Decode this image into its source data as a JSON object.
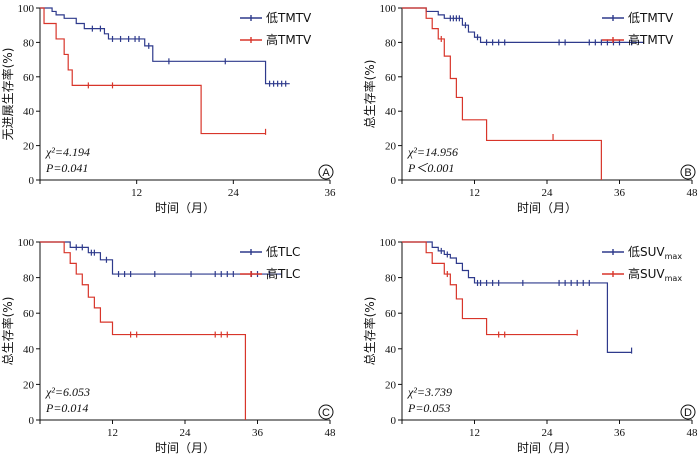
{
  "colors": {
    "low": "#2e3a8c",
    "high": "#d8352a",
    "axis": "#111111"
  },
  "chart_data": [
    {
      "type": "line",
      "panel": "A",
      "ylabel": "无进展生存率(%)",
      "xlabel": "时间（月）",
      "xlim": [
        0,
        36
      ],
      "ylim": [
        0,
        100
      ],
      "xticks": [
        0,
        12,
        24,
        36
      ],
      "xtick_labels": [
        "",
        "12",
        "24",
        "36"
      ],
      "yticks": [
        0,
        20,
        40,
        60,
        80,
        100
      ],
      "legend_position": "top-right",
      "stats": [
        "χ²=4.194",
        "P=0.041"
      ],
      "series": [
        {
          "name": "低TMTV",
          "key": "low",
          "steps": [
            [
              0,
              100
            ],
            [
              1.5,
              98
            ],
            [
              2,
              96
            ],
            [
              3,
              94
            ],
            [
              4.5,
              91
            ],
            [
              5.5,
              88
            ],
            [
              8,
              85
            ],
            [
              8.5,
              82
            ],
            [
              13,
              78
            ],
            [
              14,
              69
            ],
            [
              28,
              56
            ],
            [
              31,
              56
            ]
          ],
          "censors": [
            [
              6.5,
              88
            ],
            [
              7.5,
              88
            ],
            [
              9,
              82
            ],
            [
              10,
              82
            ],
            [
              11,
              82
            ],
            [
              11.8,
              82
            ],
            [
              12.3,
              82
            ],
            [
              13.5,
              78
            ],
            [
              16,
              69
            ],
            [
              23,
              69
            ],
            [
              28.5,
              56
            ],
            [
              29,
              56
            ],
            [
              29.5,
              56
            ],
            [
              30,
              56
            ],
            [
              30.5,
              56
            ]
          ]
        },
        {
          "name": "高TMTV",
          "key": "high",
          "steps": [
            [
              0,
              100
            ],
            [
              0.5,
              91
            ],
            [
              2,
              82
            ],
            [
              3,
              73
            ],
            [
              3.5,
              64
            ],
            [
              4,
              55
            ],
            [
              20,
              27
            ],
            [
              28,
              27
            ]
          ],
          "censors": [
            [
              6,
              55
            ],
            [
              9,
              55
            ],
            [
              28,
              28
            ]
          ]
        }
      ]
    },
    {
      "type": "line",
      "panel": "B",
      "ylabel": "总生存率(%)",
      "xlabel": "时间（月）",
      "xlim": [
        0,
        48
      ],
      "ylim": [
        0,
        100
      ],
      "xticks": [
        0,
        12,
        24,
        36,
        48
      ],
      "xtick_labels": [
        "",
        "12",
        "24",
        "36",
        "48"
      ],
      "yticks": [
        0,
        20,
        40,
        60,
        80,
        100
      ],
      "legend_position": "top-right",
      "stats": [
        "χ²=14.956",
        "P＜0.001"
      ],
      "series": [
        {
          "name": "低TMTV",
          "key": "low",
          "steps": [
            [
              0,
              100
            ],
            [
              4,
              98
            ],
            [
              6,
              96
            ],
            [
              7,
              94
            ],
            [
              10,
              90
            ],
            [
              11,
              86
            ],
            [
              12,
              83
            ],
            [
              13,
              80
            ],
            [
              40,
              80
            ]
          ],
          "censors": [
            [
              8,
              94
            ],
            [
              8.5,
              94
            ],
            [
              9,
              94
            ],
            [
              9.5,
              94
            ],
            [
              10.5,
              90
            ],
            [
              12.5,
              83
            ],
            [
              14,
              80
            ],
            [
              15,
              80
            ],
            [
              16,
              80
            ],
            [
              17,
              80
            ],
            [
              26,
              80
            ],
            [
              27,
              80
            ],
            [
              31,
              80
            ],
            [
              32,
              80
            ],
            [
              33,
              80
            ],
            [
              34,
              80
            ],
            [
              35,
              80
            ],
            [
              36,
              80
            ],
            [
              38,
              80
            ]
          ]
        },
        {
          "name": "高TMTV",
          "key": "high",
          "steps": [
            [
              0,
              100
            ],
            [
              4,
              94
            ],
            [
              5,
              88
            ],
            [
              6,
              82
            ],
            [
              7,
              72
            ],
            [
              8,
              59
            ],
            [
              9,
              48
            ],
            [
              10,
              35
            ],
            [
              14,
              23
            ],
            [
              33,
              0
            ]
          ],
          "censors": [
            [
              6.5,
              82
            ],
            [
              25,
              25
            ]
          ]
        }
      ]
    },
    {
      "type": "line",
      "panel": "C",
      "ylabel": "总生存率(%)",
      "xlabel": "时间（月）",
      "xlim": [
        0,
        48
      ],
      "ylim": [
        0,
        100
      ],
      "xticks": [
        0,
        12,
        24,
        36,
        48
      ],
      "xtick_labels": [
        "",
        "12",
        "24",
        "36",
        "48"
      ],
      "yticks": [
        0,
        20,
        40,
        60,
        80,
        100
      ],
      "legend_position": "top-right",
      "stats": [
        "χ²=6.053",
        "P=0.014"
      ],
      "series": [
        {
          "name": "低TLC",
          "key": "low",
          "steps": [
            [
              0,
              100
            ],
            [
              5,
              97
            ],
            [
              8,
              94
            ],
            [
              10,
              90
            ],
            [
              12,
              82
            ],
            [
              40,
              82
            ]
          ],
          "censors": [
            [
              6,
              97
            ],
            [
              7,
              97
            ],
            [
              8.5,
              94
            ],
            [
              9,
              94
            ],
            [
              11,
              90
            ],
            [
              13,
              82
            ],
            [
              14,
              82
            ],
            [
              15,
              82
            ],
            [
              19,
              82
            ],
            [
              25,
              82
            ],
            [
              29,
              82
            ],
            [
              30,
              82
            ],
            [
              31,
              82
            ],
            [
              32,
              82
            ],
            [
              35,
              82
            ],
            [
              36,
              82
            ],
            [
              38,
              82
            ]
          ]
        },
        {
          "name": "高TLC",
          "key": "high",
          "steps": [
            [
              0,
              100
            ],
            [
              4,
              94
            ],
            [
              5,
              88
            ],
            [
              6,
              82
            ],
            [
              7,
              76
            ],
            [
              8,
              69
            ],
            [
              9,
              63
            ],
            [
              10,
              55
            ],
            [
              12,
              48
            ],
            [
              34,
              0
            ]
          ],
          "censors": [
            [
              15,
              48
            ],
            [
              16,
              48
            ],
            [
              29,
              48
            ],
            [
              30,
              48
            ],
            [
              31,
              48
            ]
          ]
        }
      ]
    },
    {
      "type": "line",
      "panel": "D",
      "ylabel": "总生存率(%)",
      "xlabel": "时间（月）",
      "xlim": [
        0,
        48
      ],
      "ylim": [
        0,
        100
      ],
      "xticks": [
        0,
        12,
        24,
        36,
        48
      ],
      "xtick_labels": [
        "",
        "12",
        "24",
        "36",
        "48"
      ],
      "yticks": [
        0,
        20,
        40,
        60,
        80,
        100
      ],
      "legend_position": "top-right",
      "stats": [
        "χ²=3.739",
        "P=0.053"
      ],
      "series": [
        {
          "name": "低SUV",
          "name_sub": "max",
          "key": "low",
          "steps": [
            [
              0,
              100
            ],
            [
              5,
              97
            ],
            [
              6,
              95
            ],
            [
              7,
              93
            ],
            [
              8,
              91
            ],
            [
              9,
              88
            ],
            [
              10,
              84
            ],
            [
              11,
              80
            ],
            [
              12,
              77
            ],
            [
              34,
              38
            ],
            [
              38,
              38
            ]
          ],
          "censors": [
            [
              6.5,
              95
            ],
            [
              7.5,
              93
            ],
            [
              12.5,
              77
            ],
            [
              13,
              77
            ],
            [
              14,
              77
            ],
            [
              15,
              77
            ],
            [
              16,
              77
            ],
            [
              20,
              77
            ],
            [
              26,
              77
            ],
            [
              27,
              77
            ],
            [
              28,
              77
            ],
            [
              29,
              77
            ],
            [
              30,
              77
            ],
            [
              31,
              77
            ],
            [
              38,
              39
            ]
          ]
        },
        {
          "name": "高SUV",
          "name_sub": "max",
          "key": "high",
          "steps": [
            [
              0,
              100
            ],
            [
              4,
              94
            ],
            [
              5,
              88
            ],
            [
              7,
              82
            ],
            [
              8,
              76
            ],
            [
              9,
              68
            ],
            [
              10,
              57
            ],
            [
              14,
              48
            ],
            [
              29,
              48
            ]
          ],
          "censors": [
            [
              7.5,
              82
            ],
            [
              16,
              48
            ],
            [
              17,
              48
            ],
            [
              29,
              49
            ]
          ]
        }
      ]
    }
  ]
}
